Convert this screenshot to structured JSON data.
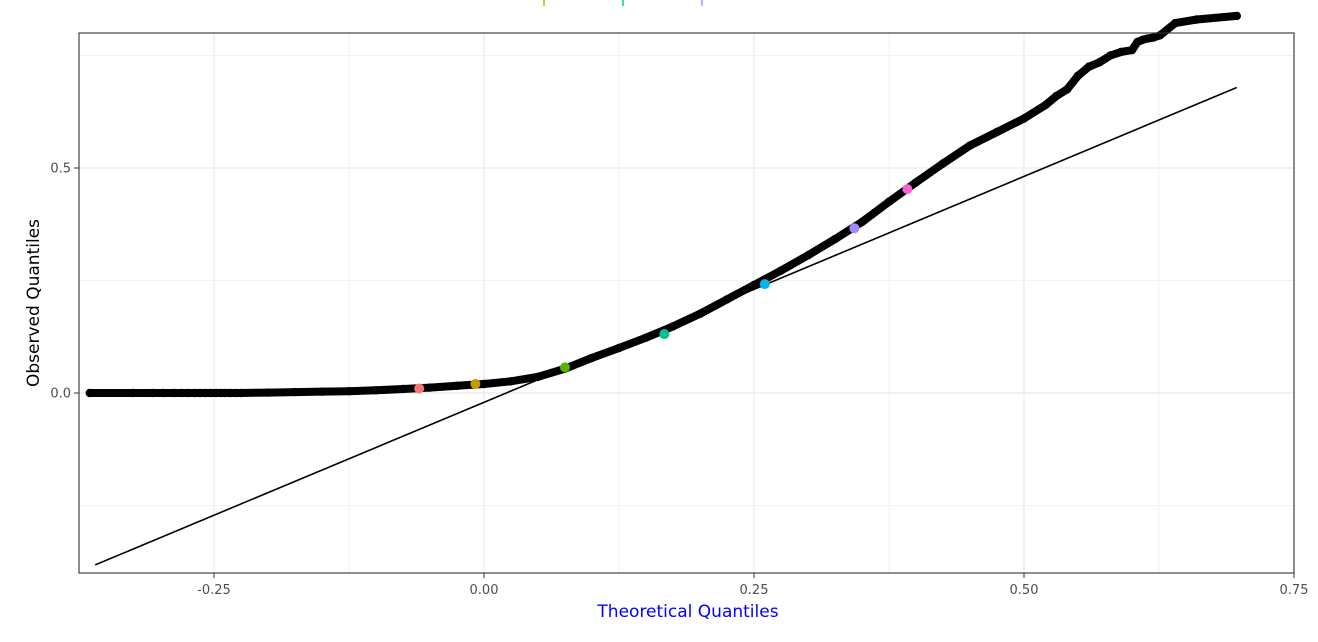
{
  "chart_data": {
    "type": "scatter",
    "title": "",
    "xlabel": "Theoretical Quantiles",
    "ylabel": "Observed Quantiles",
    "xlabel_color": "#0000ff",
    "ylabel_color": "#000000",
    "xlim": [
      -0.375,
      0.75
    ],
    "ylim": [
      -0.4,
      0.8
    ],
    "x_ticks": [
      -0.25,
      0.0,
      0.25,
      0.5,
      0.75
    ],
    "x_tick_labels": [
      "-0.25",
      "0.00",
      "0.25",
      "0.50",
      "0.75"
    ],
    "y_ticks": [
      0.0,
      0.5
    ],
    "y_tick_labels": [
      "0.0",
      "0.5"
    ],
    "grid": true,
    "reference_line": {
      "x": [
        -0.36,
        0.697
      ],
      "y": [
        -0.382,
        0.679
      ]
    },
    "points": {
      "color": "#000000",
      "x": [
        -0.365,
        -0.325,
        -0.307,
        -0.297,
        -0.287,
        -0.28,
        -0.274,
        -0.268,
        -0.263,
        -0.258,
        -0.253,
        -0.248,
        -0.244,
        -0.24,
        -0.235,
        -0.23,
        -0.225,
        -0.2,
        -0.175,
        -0.15,
        -0.125,
        -0.1,
        -0.075,
        -0.05,
        -0.025,
        0.0,
        0.025,
        0.05,
        0.075,
        0.1,
        0.125,
        0.15,
        0.175,
        0.2,
        0.225,
        0.25,
        0.275,
        0.3,
        0.325,
        0.35,
        0.375,
        0.4,
        0.425,
        0.45,
        0.475,
        0.5,
        0.52,
        0.53,
        0.54,
        0.55,
        0.56,
        0.57,
        0.58,
        0.59,
        0.6,
        0.605,
        0.61,
        0.615,
        0.62,
        0.626,
        0.64,
        0.66,
        0.697
      ],
      "y": [
        0.0,
        0.0,
        0.0,
        0.0,
        0.0,
        0.0,
        0.0,
        0.0,
        0.0,
        0.0,
        0.0,
        0.0,
        0.0,
        0.0,
        0.0,
        0.0,
        0.0,
        0.001,
        0.002,
        0.003,
        0.004,
        0.006,
        0.009,
        0.012,
        0.016,
        0.02,
        0.026,
        0.036,
        0.054,
        0.078,
        0.1,
        0.123,
        0.148,
        0.176,
        0.208,
        0.24,
        0.272,
        0.306,
        0.342,
        0.38,
        0.425,
        0.468,
        0.51,
        0.55,
        0.58,
        0.61,
        0.64,
        0.66,
        0.675,
        0.705,
        0.725,
        0.735,
        0.75,
        0.758,
        0.762,
        0.78,
        0.785,
        0.788,
        0.79,
        0.795,
        0.822,
        0.83,
        0.838
      ]
    },
    "highlighted_points": {
      "x": [
        -0.06,
        -0.008,
        0.075,
        0.167,
        0.26,
        0.343,
        0.392
      ],
      "y": [
        0.01,
        0.02,
        0.057,
        0.131,
        0.242,
        0.366,
        0.453
      ],
      "colors": [
        "#f8766d",
        "#c49a00",
        "#53b400",
        "#00c094",
        "#00b6eb",
        "#a58aff",
        "#fb61d7"
      ]
    },
    "clipped_legend_markers": [
      "#c49a00",
      "#00c094",
      "#a58aff"
    ]
  }
}
